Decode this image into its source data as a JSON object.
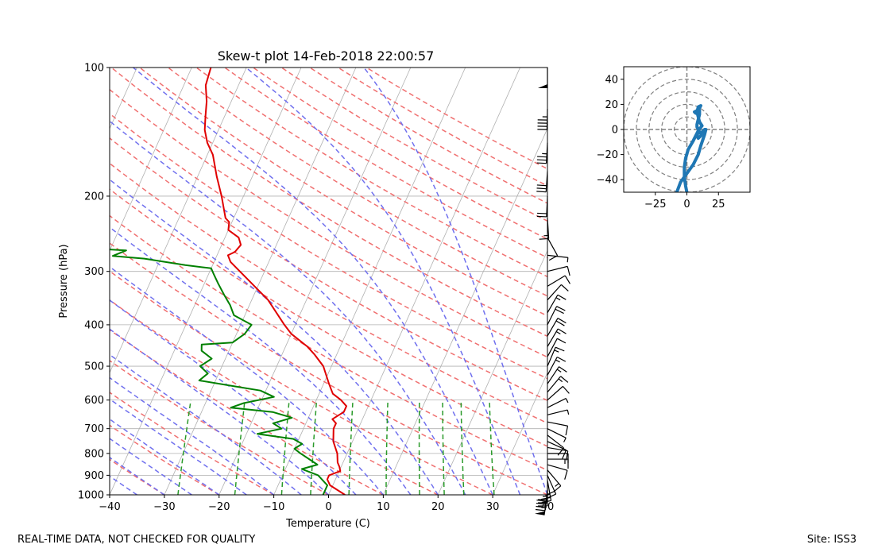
{
  "footer": {
    "left": "REAL-TIME DATA, NOT CHECKED FOR QUALITY",
    "right": "Site: ISS3"
  },
  "chart_data": [
    {
      "type": "line",
      "title": "Skew-t plot 14-Feb-2018 22:00:57",
      "xlabel": "Temperature (C)",
      "ylabel": "Pressure (hPa)",
      "xlim": [
        -40,
        40
      ],
      "ylim": [
        1000,
        100
      ],
      "y_scale": "log",
      "skew": 35,
      "x_ticks": [
        -40,
        -30,
        -20,
        -10,
        0,
        10,
        20,
        30,
        40
      ],
      "x_tick_labels": [
        "−40",
        "−30",
        "−20",
        "−10",
        "0",
        "10",
        "20",
        "30",
        "40"
      ],
      "y_ticks": [
        1000,
        900,
        800,
        700,
        600,
        500,
        400,
        300,
        200,
        100
      ],
      "y_tick_labels": [
        "1000",
        "900",
        "800",
        "700",
        "600",
        "500",
        "400",
        "300",
        "200",
        "100"
      ],
      "grid": true,
      "colors": {
        "temperature": "#e00000",
        "dewpoint": "#008000",
        "dry_adiabats": "#f07070",
        "moist_adiabats": "#7070ee",
        "mixing_ratio": "#2a9a2a",
        "isotherms": "#b0b0b0",
        "wind_barbs": "#000000"
      },
      "series": [
        {
          "role": "temperature",
          "points": [
            [
              1000,
              3.0
            ],
            [
              950,
              -0.5
            ],
            [
              920,
              -1.5
            ],
            [
              900,
              -1.5
            ],
            [
              880,
              0.2
            ],
            [
              860,
              -0.3
            ],
            [
              840,
              -1.0
            ],
            [
              800,
              -1.8
            ],
            [
              750,
              -3.5
            ],
            [
              700,
              -4.5
            ],
            [
              680,
              -4.5
            ],
            [
              665,
              -5.5
            ],
            [
              640,
              -4.0
            ],
            [
              620,
              -4.0
            ],
            [
              600,
              -5.5
            ],
            [
              580,
              -7.5
            ],
            [
              550,
              -9.0
            ],
            [
              500,
              -11.5
            ],
            [
              470,
              -14.0
            ],
            [
              450,
              -16.0
            ],
            [
              420,
              -20.0
            ],
            [
              400,
              -22.0
            ],
            [
              350,
              -27.0
            ],
            [
              300,
              -34.5
            ],
            [
              285,
              -37.0
            ],
            [
              275,
              -38.0
            ],
            [
              270,
              -37.0
            ],
            [
              260,
              -36.5
            ],
            [
              250,
              -37.5
            ],
            [
              240,
              -40.0
            ],
            [
              230,
              -40.5
            ],
            [
              225,
              -41.5
            ],
            [
              200,
              -44.0
            ],
            [
              180,
              -46.5
            ],
            [
              160,
              -49.0
            ],
            [
              150,
              -51.0
            ],
            [
              140,
              -52.5
            ],
            [
              130,
              -53.5
            ],
            [
              120,
              -54.5
            ],
            [
              110,
              -56.0
            ],
            [
              100,
              -56.5
            ]
          ]
        },
        {
          "role": "dewpoint",
          "points": [
            [
              1000,
              -1.0
            ],
            [
              950,
              -1.0
            ],
            [
              900,
              -3.5
            ],
            [
              870,
              -7.0
            ],
            [
              850,
              -4.5
            ],
            [
              800,
              -8.5
            ],
            [
              780,
              -10.0
            ],
            [
              760,
              -9.0
            ],
            [
              740,
              -11.0
            ],
            [
              720,
              -18.0
            ],
            [
              700,
              -14.0
            ],
            [
              680,
              -16.0
            ],
            [
              660,
              -13.0
            ],
            [
              640,
              -17.0
            ],
            [
              625,
              -25.0
            ],
            [
              610,
              -23.0
            ],
            [
              590,
              -18.0
            ],
            [
              570,
              -21.0
            ],
            [
              560,
              -25.0
            ],
            [
              540,
              -33.0
            ],
            [
              520,
              -32.0
            ],
            [
              500,
              -34.0
            ],
            [
              480,
              -32.5
            ],
            [
              460,
              -35.0
            ],
            [
              445,
              -35.5
            ],
            [
              440,
              -30.0
            ],
            [
              420,
              -28.5
            ],
            [
              400,
              -28.0
            ],
            [
              380,
              -32.0
            ],
            [
              360,
              -33.5
            ],
            [
              340,
              -35.5
            ],
            [
              320,
              -37.5
            ],
            [
              305,
              -39.0
            ],
            [
              295,
              -40.0
            ],
            [
              290,
              -45.0
            ],
            [
              280,
              -53.0
            ],
            [
              276,
              -59.0
            ],
            [
              268,
              -57.0
            ],
            [
              265,
              -64.0
            ],
            [
              260,
              -66.0
            ],
            [
              245,
              -64.5
            ],
            [
              235,
              -65.0
            ],
            [
              225,
              -66.0
            ],
            [
              215,
              -65.0
            ],
            [
              200,
              -67.5
            ],
            [
              180,
              -70.5
            ],
            [
              160,
              -73.0
            ],
            [
              140,
              -76.0
            ],
            [
              120,
              -79.0
            ],
            [
              100,
              -82.0
            ]
          ]
        }
      ],
      "hodograph": {
        "type": "line",
        "xlim": [
          -50,
          50
        ],
        "ylim": [
          -50,
          50
        ],
        "x_ticks": [
          -25,
          0,
          25
        ],
        "x_tick_labels": [
          "−25",
          "0",
          "25"
        ],
        "y_ticks": [
          -40,
          -20,
          0,
          20,
          40
        ],
        "y_tick_labels": [
          "−40",
          "−20",
          "0",
          "20",
          "40"
        ],
        "rings": [
          10,
          20,
          30,
          40,
          50
        ],
        "color": "#1f77b4",
        "points": [
          [
            -8,
            -50
          ],
          [
            -5,
            -42
          ],
          [
            0,
            -35
          ],
          [
            5,
            -28
          ],
          [
            9,
            -20
          ],
          [
            11,
            -13
          ],
          [
            14,
            -4
          ],
          [
            15,
            0
          ],
          [
            14,
            0
          ],
          [
            12,
            -2
          ],
          [
            11,
            -5
          ],
          [
            9,
            -7
          ],
          [
            8,
            -4
          ],
          [
            10,
            -2
          ],
          [
            8,
            2
          ],
          [
            8,
            4
          ],
          [
            9,
            8
          ],
          [
            10,
            12
          ],
          [
            10,
            15
          ],
          [
            8,
            15
          ],
          [
            6,
            14
          ],
          [
            7,
            13
          ],
          [
            10,
            17
          ],
          [
            11,
            19
          ],
          [
            9,
            18
          ],
          [
            8,
            14
          ],
          [
            9,
            10
          ],
          [
            10,
            6
          ],
          [
            12,
            3
          ],
          [
            9,
            -1
          ],
          [
            5,
            -9
          ],
          [
            1,
            -16
          ],
          [
            -1,
            -23
          ],
          [
            -2,
            -30
          ],
          [
            -2,
            -38
          ],
          [
            -1,
            -45
          ],
          [
            0,
            -50
          ]
        ]
      }
    }
  ]
}
